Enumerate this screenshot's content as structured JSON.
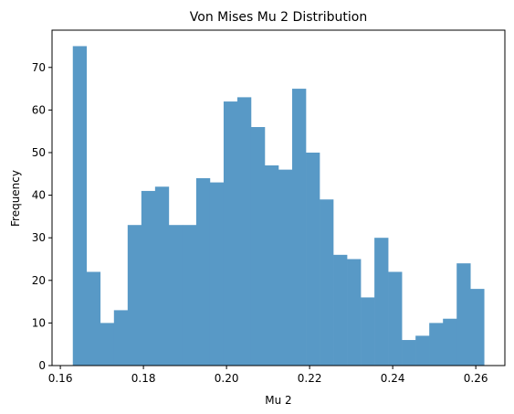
{
  "chart_data": {
    "type": "bar",
    "title": "Von Mises Mu 2 Distribution",
    "xlabel": "Mu 2",
    "ylabel": "Frequency",
    "xlim": [
      0.158,
      0.267
    ],
    "ylim": [
      0,
      78.75
    ],
    "xticks": [
      0.16,
      0.18,
      0.2,
      0.22,
      0.24,
      0.26
    ],
    "xtick_labels": [
      "0.16",
      "0.18",
      "0.20",
      "0.22",
      "0.24",
      "0.26"
    ],
    "yticks": [
      0,
      10,
      20,
      30,
      40,
      50,
      60,
      70
    ],
    "ytick_labels": [
      "0",
      "10",
      "20",
      "30",
      "40",
      "50",
      "60",
      "70"
    ],
    "grid": false,
    "bar_color": "#5899c6",
    "bin_range": [
      0.163,
      0.262
    ],
    "values": [
      75,
      22,
      10,
      13,
      33,
      41,
      42,
      33,
      33,
      44,
      43,
      62,
      63,
      56,
      47,
      46,
      65,
      50,
      39,
      26,
      25,
      16,
      30,
      22,
      6,
      7,
      10,
      11,
      24,
      18
    ]
  }
}
